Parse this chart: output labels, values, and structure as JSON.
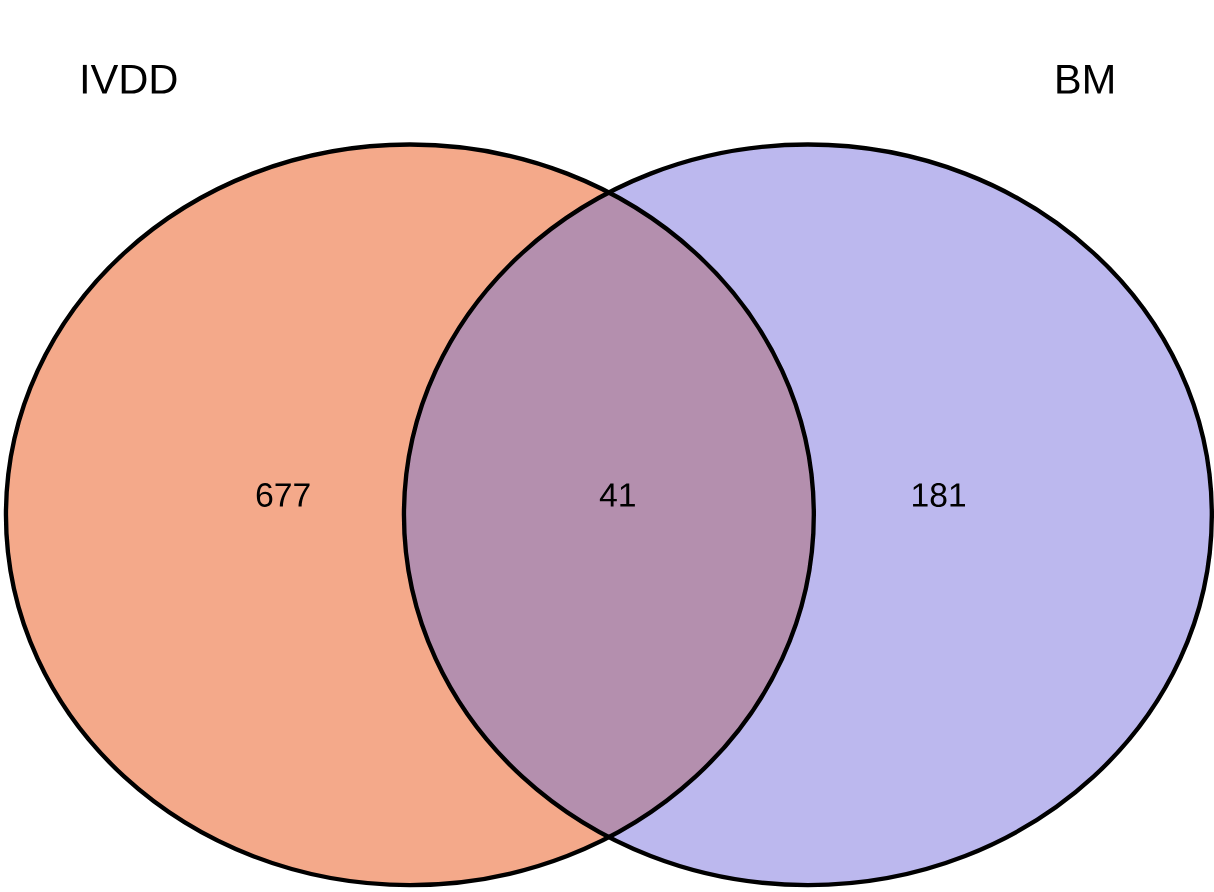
{
  "chart_data": {
    "type": "other",
    "categories": [
      "IVDD",
      null,
      "BM"
    ],
    "values": [
      677,
      41,
      181
    ],
    "colors": [
      "#f4a98a",
      "#b48fae",
      "#bcb8ee"
    ],
    "data_labels": true
  }
}
